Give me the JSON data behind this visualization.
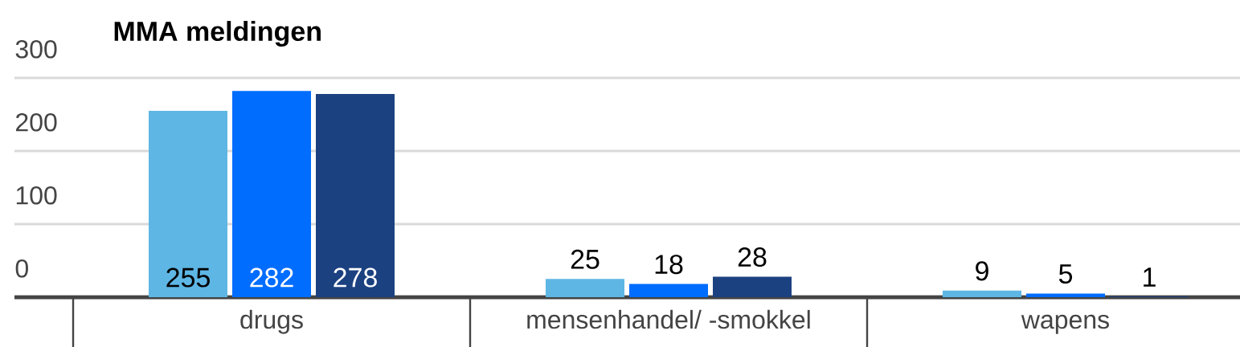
{
  "chart_data": {
    "type": "bar",
    "title": "MMA meldingen",
    "categories": [
      "drugs",
      "mensenhandel/ -smokkel",
      "wapens"
    ],
    "series": [
      {
        "color": "#5eb6e4",
        "values": [
          255,
          25,
          9
        ]
      },
      {
        "color": "#006dff",
        "values": [
          282,
          18,
          5
        ]
      },
      {
        "color": "#1c4180",
        "values": [
          278,
          28,
          1
        ]
      }
    ],
    "ylim": [
      0,
      300
    ],
    "yticks": [
      0,
      100,
      200,
      300
    ],
    "grid": "y",
    "data_labels": true
  }
}
